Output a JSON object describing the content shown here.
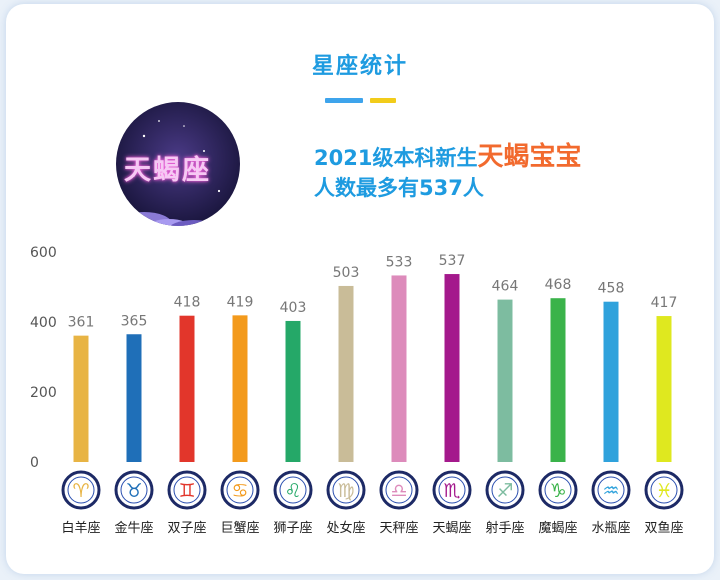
{
  "header": {
    "title": "星座统计",
    "line1_prefix": "2021级本科新生",
    "line1_highlight": "天蝎宝宝",
    "line2": "人数最多有537人",
    "badge_text": "天蝎座"
  },
  "colors": {
    "accent_blue": "#1e9be0",
    "accent_orange": "#f26a2e",
    "deco_yellow": "#f2cc1a"
  },
  "chart_data": {
    "type": "bar",
    "categories": [
      "白羊座",
      "金牛座",
      "双子座",
      "巨蟹座",
      "狮子座",
      "处女座",
      "天秤座",
      "天蝎座",
      "射手座",
      "魔蝎座",
      "水瓶座",
      "双鱼座"
    ],
    "values": [
      361,
      365,
      418,
      419,
      403,
      503,
      533,
      537,
      464,
      468,
      458,
      417
    ],
    "bar_colors": [
      "#e8b444",
      "#1f6fb8",
      "#e2362b",
      "#f39a1c",
      "#25a868",
      "#c9bc98",
      "#dd8bbb",
      "#a4198c",
      "#7dbca0",
      "#3ab34a",
      "#2fa2dc",
      "#dfe81f"
    ],
    "icons": [
      "aries-icon",
      "taurus-icon",
      "gemini-icon",
      "cancer-icon",
      "leo-icon",
      "virgo-icon",
      "libra-icon",
      "scorpio-icon",
      "sagittarius-icon",
      "capricorn-icon",
      "aquarius-icon",
      "pisces-icon"
    ],
    "glyphs": [
      "♈",
      "♉",
      "♊",
      "♋",
      "♌",
      "♍",
      "♎",
      "♏",
      "♐",
      "♑",
      "♒",
      "♓"
    ],
    "yticks": [
      0,
      200,
      400,
      600
    ],
    "ylim": [
      0,
      600
    ],
    "title": "",
    "xlabel": "",
    "ylabel": "",
    "grid": false
  }
}
